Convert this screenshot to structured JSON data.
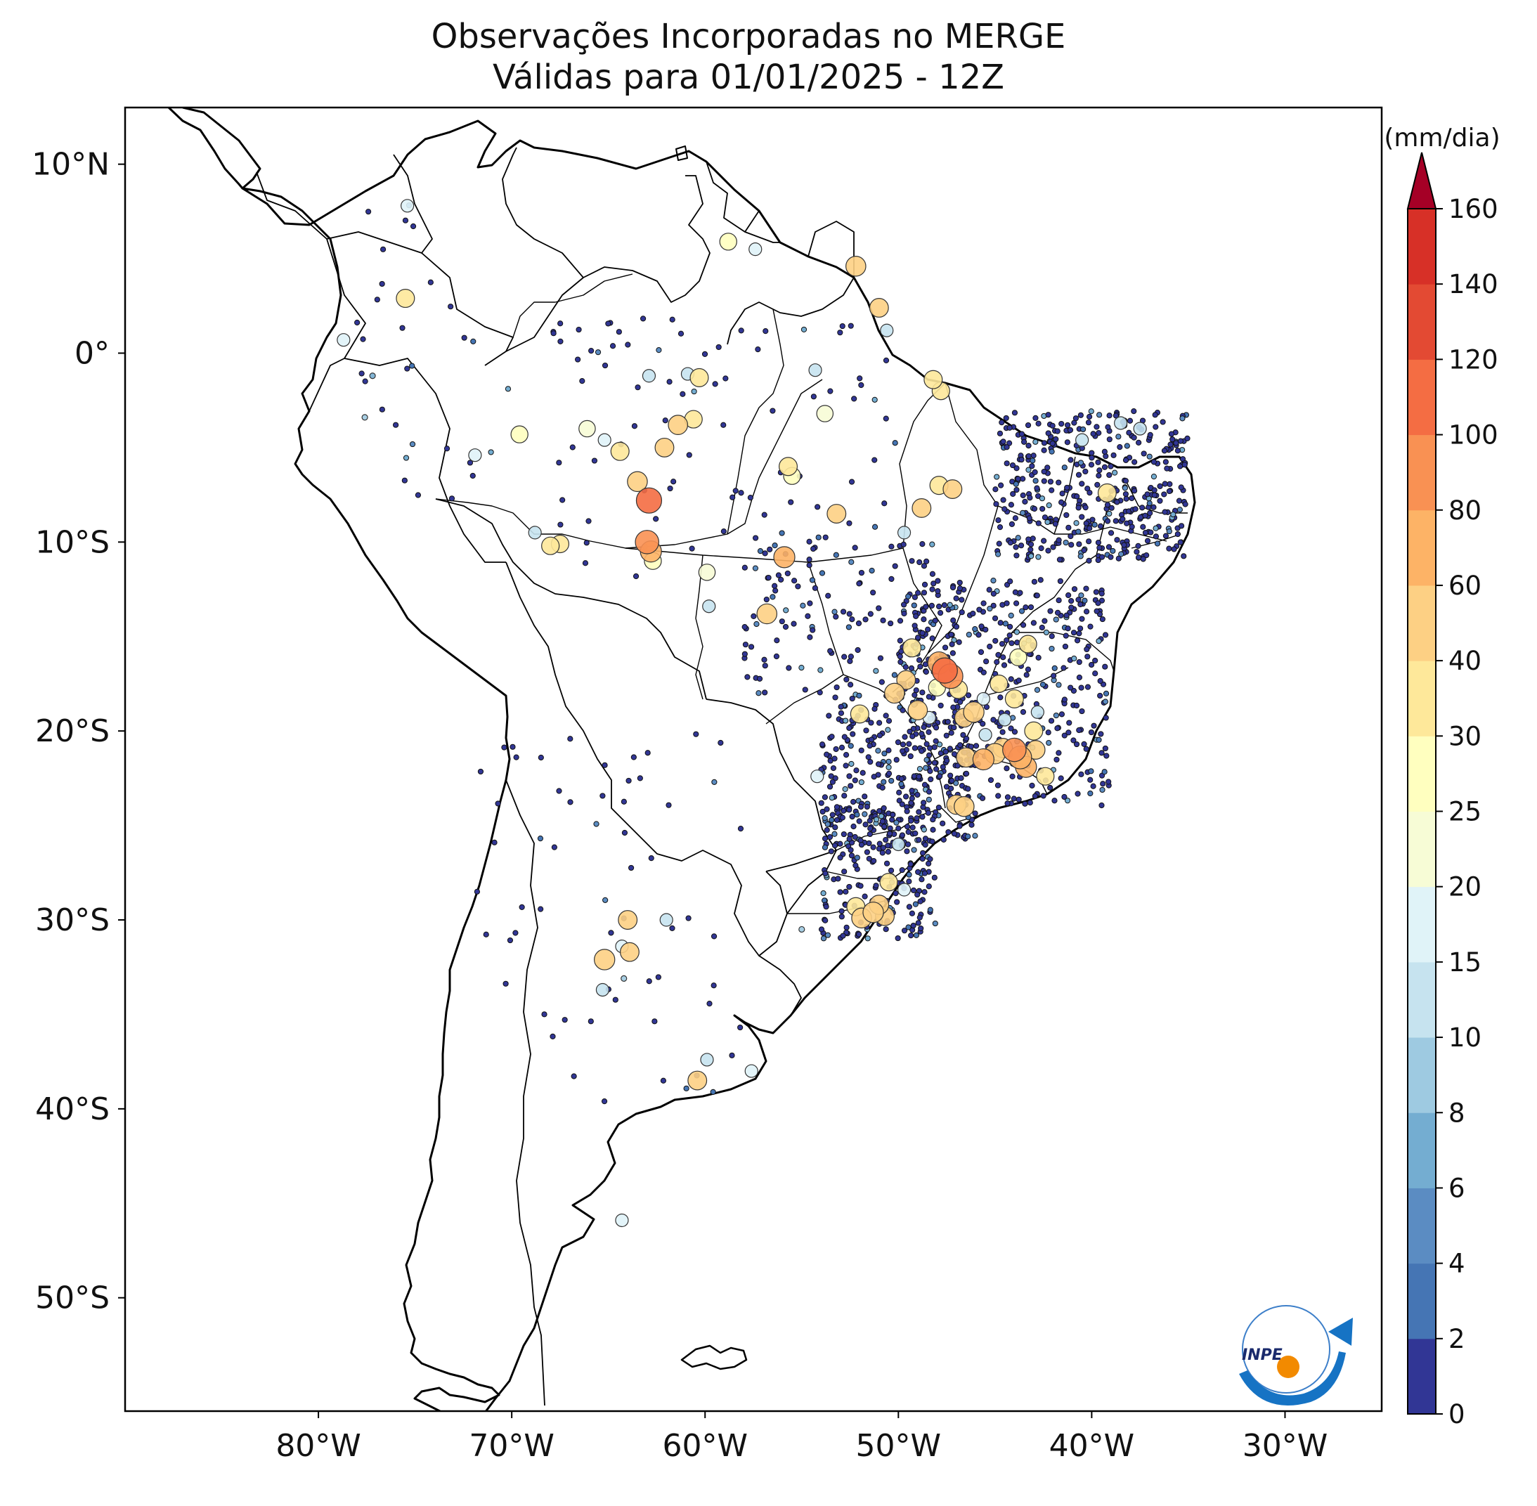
{
  "title_line1": "Observações Incorporadas no MERGE",
  "title_line2": "Válidas para 01/01/2025 - 12Z",
  "map": {
    "lon_range": [
      -90,
      -25
    ],
    "lat_range": [
      -56,
      13
    ],
    "lat_ticks": [
      {
        "value": 10,
        "label": "10°N"
      },
      {
        "value": 0,
        "label": "0°"
      },
      {
        "value": -10,
        "label": "10°S"
      },
      {
        "value": -20,
        "label": "20°S"
      },
      {
        "value": -30,
        "label": "30°S"
      },
      {
        "value": -40,
        "label": "40°S"
      },
      {
        "value": -50,
        "label": "50°S"
      }
    ],
    "lon_ticks": [
      {
        "value": -80,
        "label": "80°W"
      },
      {
        "value": -70,
        "label": "70°W"
      },
      {
        "value": -60,
        "label": "60°W"
      },
      {
        "value": -50,
        "label": "50°W"
      },
      {
        "value": -40,
        "label": "40°W"
      },
      {
        "value": -30,
        "label": "30°W"
      }
    ]
  },
  "colorbar": {
    "unit": "(mm/dia)",
    "levels": [
      0,
      2,
      4,
      6,
      8,
      10,
      15,
      20,
      25,
      30,
      40,
      60,
      80,
      100,
      120,
      140,
      160
    ],
    "labels": [
      "0",
      "2",
      "4",
      "6",
      "8",
      "10",
      "15",
      "20",
      "25",
      "30",
      "40",
      "60",
      "80",
      "100",
      "120",
      "140",
      "160"
    ],
    "colors": [
      "#313695",
      "#4575b4",
      "#5b8cc2",
      "#74add1",
      "#9ecae1",
      "#c6e3ef",
      "#e0f3f8",
      "#f7fcd6",
      "#ffffbf",
      "#fee89a",
      "#fdd084",
      "#fdb366",
      "#f99153",
      "#f46d43",
      "#e34a33",
      "#d73027",
      "#b2182b"
    ],
    "extend_color": "#a50026"
  },
  "logo": {
    "text": "INPE"
  },
  "observations": [
    {
      "lon": -75.4,
      "lat": 7.8,
      "v": 15
    },
    {
      "lon": -75.5,
      "lat": 2.9,
      "v": 35
    },
    {
      "lon": -77.6,
      "lat": -3.4,
      "v": 8
    },
    {
      "lon": -78.7,
      "lat": 0.7,
      "v": 15
    },
    {
      "lon": -77.2,
      "lat": -1.2,
      "v": 7
    },
    {
      "lon": -71.9,
      "lat": -5.4,
      "v": 15
    },
    {
      "lon": -69.6,
      "lat": -4.3,
      "v": 25
    },
    {
      "lon": -67.5,
      "lat": -10.1,
      "v": 30
    },
    {
      "lon": -68.0,
      "lat": -10.2,
      "v": 30
    },
    {
      "lon": -68.8,
      "lat": -9.5,
      "v": 12
    },
    {
      "lon": -66.1,
      "lat": -4.0,
      "v": 20
    },
    {
      "lon": -65.2,
      "lat": -4.6,
      "v": 18
    },
    {
      "lon": -64.4,
      "lat": -5.2,
      "v": 35
    },
    {
      "lon": -63.5,
      "lat": -6.8,
      "v": 50
    },
    {
      "lon": -62.9,
      "lat": -7.8,
      "v": 100
    },
    {
      "lon": -63.0,
      "lat": -10.0,
      "v": 80
    },
    {
      "lon": -62.8,
      "lat": -10.5,
      "v": 60
    },
    {
      "lon": -62.7,
      "lat": -11.0,
      "v": 25
    },
    {
      "lon": -62.1,
      "lat": -5.0,
      "v": 40
    },
    {
      "lon": -61.4,
      "lat": -3.8,
      "v": 45
    },
    {
      "lon": -60.6,
      "lat": -3.5,
      "v": 30
    },
    {
      "lon": -60.3,
      "lat": -1.3,
      "v": 35
    },
    {
      "lon": -60.9,
      "lat": -1.1,
      "v": 12
    },
    {
      "lon": -62.9,
      "lat": -1.2,
      "v": 10
    },
    {
      "lon": -59.9,
      "lat": -11.6,
      "v": 20
    },
    {
      "lon": -59.8,
      "lat": -13.4,
      "v": 10
    },
    {
      "lon": -55.9,
      "lat": -10.8,
      "v": 60
    },
    {
      "lon": -56.8,
      "lat": -13.8,
      "v": 50
    },
    {
      "lon": -55.7,
      "lat": -6.0,
      "v": 35
    },
    {
      "lon": -55.5,
      "lat": -6.5,
      "v": 25
    },
    {
      "lon": -53.2,
      "lat": -8.5,
      "v": 40
    },
    {
      "lon": -53.8,
      "lat": -3.2,
      "v": 20
    },
    {
      "lon": -52.2,
      "lat": 4.6,
      "v": 50
    },
    {
      "lon": -51.0,
      "lat": 2.4,
      "v": 40
    },
    {
      "lon": -50.6,
      "lat": 1.2,
      "v": 12
    },
    {
      "lon": -54.3,
      "lat": -0.9,
      "v": 10
    },
    {
      "lon": -57.4,
      "lat": 5.5,
      "v": 15
    },
    {
      "lon": -58.8,
      "lat": 5.9,
      "v": 25
    },
    {
      "lon": -48.2,
      "lat": -1.4,
      "v": 35
    },
    {
      "lon": -47.8,
      "lat": -2.0,
      "v": 30
    },
    {
      "lon": -47.9,
      "lat": -7.0,
      "v": 35
    },
    {
      "lon": -47.2,
      "lat": -7.2,
      "v": 40
    },
    {
      "lon": -48.8,
      "lat": -8.2,
      "v": 40
    },
    {
      "lon": -49.3,
      "lat": -15.6,
      "v": 35
    },
    {
      "lon": -50.2,
      "lat": -18.0,
      "v": 50
    },
    {
      "lon": -49.6,
      "lat": -17.3,
      "v": 40
    },
    {
      "lon": -49.0,
      "lat": -18.9,
      "v": 45
    },
    {
      "lon": -47.6,
      "lat": -16.8,
      "v": 100
    },
    {
      "lon": -47.3,
      "lat": -17.1,
      "v": 90
    },
    {
      "lon": -47.9,
      "lat": -16.4,
      "v": 70
    },
    {
      "lon": -46.9,
      "lat": -17.8,
      "v": 35
    },
    {
      "lon": -46.6,
      "lat": -19.3,
      "v": 40
    },
    {
      "lon": -46.1,
      "lat": -19.0,
      "v": 55
    },
    {
      "lon": -45.6,
      "lat": -18.3,
      "v": 15
    },
    {
      "lon": -44.0,
      "lat": -18.3,
      "v": 35
    },
    {
      "lon": -44.8,
      "lat": -17.5,
      "v": 30
    },
    {
      "lon": -43.8,
      "lat": -16.1,
      "v": 25
    },
    {
      "lon": -43.3,
      "lat": -15.4,
      "v": 30
    },
    {
      "lon": -46.5,
      "lat": -21.4,
      "v": 45
    },
    {
      "lon": -45.6,
      "lat": -21.5,
      "v": 60
    },
    {
      "lon": -45.0,
      "lat": -21.2,
      "v": 55
    },
    {
      "lon": -44.6,
      "lat": -20.9,
      "v": 45
    },
    {
      "lon": -44.0,
      "lat": -21.0,
      "v": 80
    },
    {
      "lon": -43.7,
      "lat": -21.4,
      "v": 75
    },
    {
      "lon": -43.4,
      "lat": -21.9,
      "v": 60
    },
    {
      "lon": -42.9,
      "lat": -21.0,
      "v": 40
    },
    {
      "lon": -42.4,
      "lat": -22.4,
      "v": 30
    },
    {
      "lon": -43.0,
      "lat": -20.0,
      "v": 35
    },
    {
      "lon": -47.0,
      "lat": -23.9,
      "v": 45
    },
    {
      "lon": -46.6,
      "lat": -24.0,
      "v": 50
    },
    {
      "lon": -52.0,
      "lat": -19.1,
      "v": 35
    },
    {
      "lon": -54.2,
      "lat": -22.4,
      "v": 15
    },
    {
      "lon": -51.9,
      "lat": -29.9,
      "v": 50
    },
    {
      "lon": -51.3,
      "lat": -29.6,
      "v": 55
    },
    {
      "lon": -51.0,
      "lat": -29.2,
      "v": 45
    },
    {
      "lon": -50.7,
      "lat": -29.8,
      "v": 40
    },
    {
      "lon": -52.2,
      "lat": -29.3,
      "v": 35
    },
    {
      "lon": -50.5,
      "lat": -28.0,
      "v": 30
    },
    {
      "lon": -49.7,
      "lat": -28.4,
      "v": 15
    },
    {
      "lon": -50.0,
      "lat": -26.0,
      "v": 10
    },
    {
      "lon": -64.0,
      "lat": -30.0,
      "v": 40
    },
    {
      "lon": -65.2,
      "lat": -32.1,
      "v": 55
    },
    {
      "lon": -63.9,
      "lat": -31.7,
      "v": 40
    },
    {
      "lon": -64.3,
      "lat": -31.4,
      "v": 15
    },
    {
      "lon": -65.3,
      "lat": -33.7,
      "v": 10
    },
    {
      "lon": -64.2,
      "lat": -33.1,
      "v": 8
    },
    {
      "lon": -62.0,
      "lat": -30.0,
      "v": 12
    },
    {
      "lon": -60.4,
      "lat": -38.5,
      "v": 40
    },
    {
      "lon": -59.9,
      "lat": -37.4,
      "v": 12
    },
    {
      "lon": -57.6,
      "lat": -38.0,
      "v": 15
    },
    {
      "lon": -64.3,
      "lat": -45.9,
      "v": 15
    },
    {
      "lon": -38.5,
      "lat": -3.7,
      "v": 10
    },
    {
      "lon": -37.5,
      "lat": -4.0,
      "v": 12
    },
    {
      "lon": -39.2,
      "lat": -7.4,
      "v": 35
    },
    {
      "lon": -40.5,
      "lat": -4.6,
      "v": 10
    },
    {
      "lon": -55.0,
      "lat": -30.5,
      "v": 8
    },
    {
      "lon": -42.8,
      "lat": -19.0,
      "v": 12
    },
    {
      "lon": -44.5,
      "lat": -19.4,
      "v": 10
    },
    {
      "lon": -45.5,
      "lat": -20.2,
      "v": 12
    },
    {
      "lon": -48.4,
      "lat": -19.3,
      "v": 15
    },
    {
      "lon": -48.0,
      "lat": -17.7,
      "v": 25
    },
    {
      "lon": -49.7,
      "lat": -9.5,
      "v": 10
    }
  ]
}
